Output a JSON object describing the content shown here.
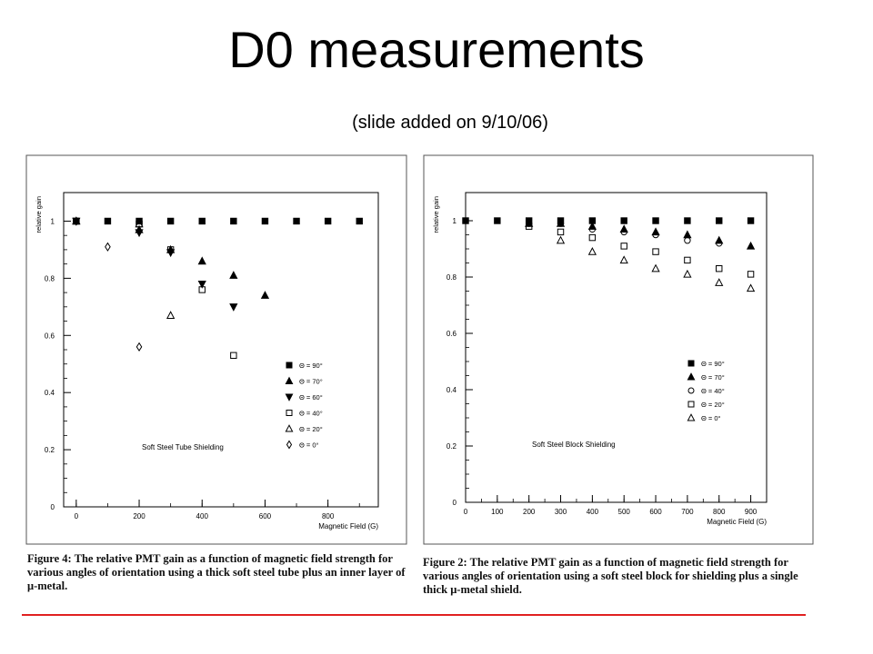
{
  "slide": {
    "title": "D0 measurements",
    "subtitle": "(slide added on 9/10/06)",
    "accent_color": "#e02020"
  },
  "chart_data": [
    {
      "type": "scatter",
      "title": "",
      "xlabel": "Magnetic Field (G)",
      "ylabel": "relative gain",
      "xlim": [
        -40,
        960
      ],
      "ylim": [
        0,
        1.1
      ],
      "x_ticks": [
        0,
        200,
        400,
        600,
        800
      ],
      "x_tick_labels": [
        "0",
        "200",
        "400",
        "600",
        "800"
      ],
      "y_ticks": [
        0,
        0.2,
        0.4,
        0.6,
        0.8,
        1
      ],
      "y_tick_labels": [
        "0",
        "0.2",
        "0.4",
        "0.6",
        "0.8",
        "1"
      ],
      "annotation": "Soft Steel Tube Shielding",
      "legend_position": "right",
      "series": [
        {
          "name": "Θ = 90°",
          "marker": "square-filled",
          "points": [
            [
              0,
              1
            ],
            [
              100,
              1
            ],
            [
              200,
              1
            ],
            [
              300,
              1
            ],
            [
              400,
              1
            ],
            [
              500,
              1
            ],
            [
              600,
              1
            ],
            [
              700,
              1
            ],
            [
              800,
              1
            ],
            [
              900,
              1
            ]
          ]
        },
        {
          "name": "Θ = 70°",
          "marker": "triangle-up-filled",
          "points": [
            [
              0,
              1
            ],
            [
              200,
              0.97
            ],
            [
              300,
              0.9
            ],
            [
              400,
              0.86
            ],
            [
              500,
              0.81
            ],
            [
              600,
              0.74
            ]
          ]
        },
        {
          "name": "Θ = 60°",
          "marker": "triangle-down-filled",
          "points": [
            [
              0,
              1
            ],
            [
              200,
              0.96
            ],
            [
              300,
              0.89
            ],
            [
              400,
              0.78
            ],
            [
              500,
              0.7
            ]
          ]
        },
        {
          "name": "Θ = 40°",
          "marker": "square-open",
          "points": [
            [
              0,
              1
            ],
            [
              200,
              0.99
            ],
            [
              300,
              0.9
            ],
            [
              400,
              0.76
            ],
            [
              500,
              0.53
            ]
          ]
        },
        {
          "name": "Θ = 20°",
          "marker": "triangle-up-open",
          "points": [
            [
              0,
              1
            ],
            [
              200,
              0.99
            ],
            [
              300,
              0.67
            ]
          ]
        },
        {
          "name": "Θ = 0°",
          "marker": "diamond-open",
          "points": [
            [
              0,
              1
            ],
            [
              100,
              0.91
            ],
            [
              200,
              0.56
            ]
          ]
        }
      ]
    },
    {
      "type": "scatter",
      "title": "",
      "xlabel": "Magnetic Field (G)",
      "ylabel": "relative gain",
      "xlim": [
        0,
        950
      ],
      "ylim": [
        0,
        1.1
      ],
      "x_ticks": [
        0,
        100,
        200,
        300,
        400,
        500,
        600,
        700,
        800,
        900
      ],
      "x_tick_labels": [
        "0",
        "100",
        "200",
        "300",
        "400",
        "500",
        "600",
        "700",
        "800",
        "900"
      ],
      "y_ticks": [
        0,
        0.2,
        0.4,
        0.6,
        0.8,
        1
      ],
      "y_tick_labels": [
        "0",
        "0.2",
        "0.4",
        "0.6",
        "0.8",
        "1"
      ],
      "annotation": "Soft Steel Block Shielding",
      "legend_position": "right",
      "series": [
        {
          "name": "Θ = 90°",
          "marker": "square-filled",
          "points": [
            [
              0,
              1
            ],
            [
              100,
              1
            ],
            [
              200,
              1
            ],
            [
              300,
              1
            ],
            [
              400,
              1
            ],
            [
              500,
              1
            ],
            [
              600,
              1
            ],
            [
              700,
              1
            ],
            [
              800,
              1
            ],
            [
              900,
              1
            ]
          ]
        },
        {
          "name": "Θ = 70°",
          "marker": "triangle-up-filled",
          "points": [
            [
              200,
              0.99
            ],
            [
              300,
              0.99
            ],
            [
              400,
              0.98
            ],
            [
              500,
              0.97
            ],
            [
              600,
              0.96
            ],
            [
              700,
              0.95
            ],
            [
              800,
              0.93
            ],
            [
              900,
              0.91
            ]
          ]
        },
        {
          "name": "Θ = 40°",
          "marker": "circle-open",
          "points": [
            [
              200,
              0.99
            ],
            [
              300,
              0.99
            ],
            [
              400,
              0.97
            ],
            [
              500,
              0.96
            ],
            [
              600,
              0.95
            ],
            [
              700,
              0.93
            ],
            [
              800,
              0.92
            ]
          ]
        },
        {
          "name": "Θ = 20°",
          "marker": "square-open",
          "points": [
            [
              200,
              0.98
            ],
            [
              300,
              0.96
            ],
            [
              400,
              0.94
            ],
            [
              500,
              0.91
            ],
            [
              600,
              0.89
            ],
            [
              700,
              0.86
            ],
            [
              800,
              0.83
            ],
            [
              900,
              0.81
            ]
          ]
        },
        {
          "name": "Θ = 0°",
          "marker": "triangle-up-open",
          "points": [
            [
              300,
              0.93
            ],
            [
              400,
              0.89
            ],
            [
              500,
              0.86
            ],
            [
              600,
              0.83
            ],
            [
              700,
              0.81
            ],
            [
              800,
              0.78
            ],
            [
              900,
              0.76
            ]
          ]
        }
      ]
    }
  ],
  "captions": {
    "left": "Figure 4:  The relative PMT gain as a function of magnetic field strength for various angles of orientation using a thick soft steel tube plus an inner layer of μ-metal.",
    "right": "Figure 2:  The relative PMT gain as a function of magnetic field strength for various angles of orientation using a soft steel block for shielding plus a single thick μ-metal shield."
  }
}
